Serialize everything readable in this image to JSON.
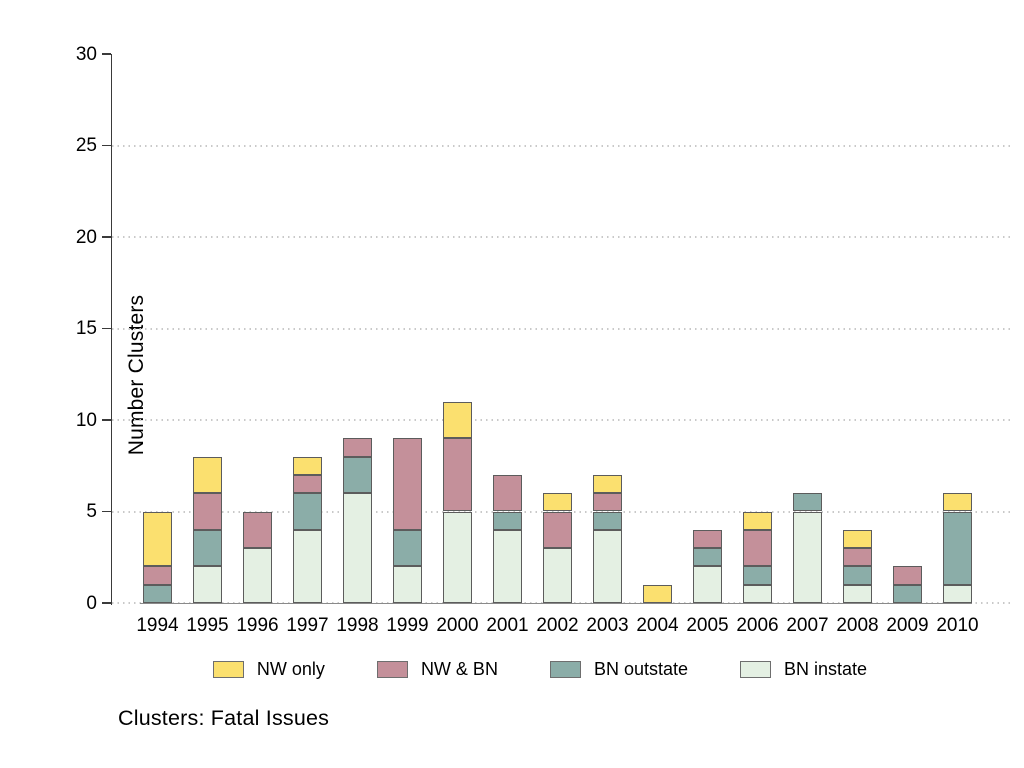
{
  "chart_data": {
    "type": "bar",
    "stacked": true,
    "title": "Clusters: Fatal Issues",
    "ylabel": "Number Clusters",
    "xlabel": "",
    "categories": [
      "1994",
      "1995",
      "1996",
      "1997",
      "1998",
      "1999",
      "2000",
      "2001",
      "2002",
      "2003",
      "2004",
      "2005",
      "2006",
      "2007",
      "2008",
      "2009",
      "2010"
    ],
    "series": [
      {
        "name": "BN instate",
        "color": "#e4f0e3",
        "values": [
          0,
          2,
          3,
          4,
          6,
          2,
          5,
          4,
          3,
          4,
          0,
          2,
          1,
          5,
          1,
          0,
          1
        ]
      },
      {
        "name": "BN outstate",
        "color": "#8badа8",
        "values": [
          1,
          2,
          0,
          2,
          2,
          2,
          0,
          1,
          0,
          1,
          0,
          1,
          1,
          1,
          1,
          1,
          4
        ]
      },
      {
        "name": "NW & BN",
        "color": "#c4909a",
        "values": [
          1,
          2,
          2,
          1,
          1,
          5,
          4,
          2,
          2,
          1,
          0,
          1,
          2,
          0,
          1,
          1,
          0
        ]
      },
      {
        "name": "NW only",
        "color": "#fbe06f",
        "values": [
          3,
          2,
          0,
          1,
          0,
          0,
          2,
          0,
          1,
          1,
          1,
          0,
          1,
          0,
          1,
          0,
          1
        ]
      }
    ],
    "totals": [
      5,
      8,
      5,
      8,
      9,
      9,
      11,
      7,
      6,
      7,
      1,
      4,
      5,
      6,
      4,
      2,
      6
    ],
    "legend_order": [
      "NW only",
      "NW & BN",
      "BN outstate",
      "BN instate"
    ],
    "legend_position": "bottom",
    "ylim": [
      0,
      30
    ],
    "yticks": [
      0,
      5,
      10,
      15,
      20,
      25,
      30
    ],
    "grid": "dotted horizontal gridlines at 0,5,10,15,20,25"
  },
  "colors": {
    "series": {
      "BN instate": "#e4f0e3",
      "BN outstate": "#8bada8",
      "NW & BN": "#c4909a",
      "NW only": "#fbe06f"
    },
    "segment_border": "#5c5c5c",
    "y_axis": "#3a3a3a",
    "x_axis": "#8a8a8a",
    "grid_dot": "#c9c9c9",
    "background": "#ffffff",
    "text": "#000000"
  }
}
